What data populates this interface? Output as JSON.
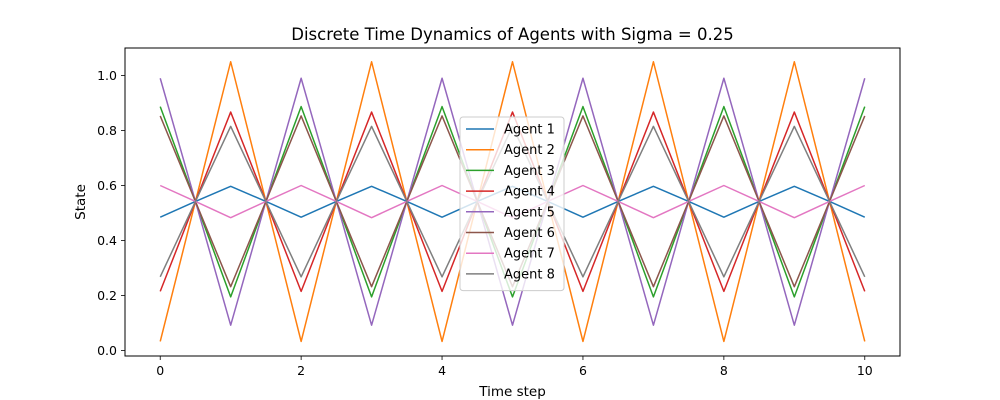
{
  "chart_data": {
    "type": "line",
    "title": "Discrete Time Dynamics of Agents with Sigma = 0.25",
    "xlabel": "Time step",
    "ylabel": "State",
    "xlim": [
      -0.5,
      10.5
    ],
    "ylim": [
      -0.02,
      1.1
    ],
    "xticks": [
      0,
      2,
      4,
      6,
      8,
      10
    ],
    "yticks": [
      0.0,
      0.2,
      0.4,
      0.6,
      0.8,
      1.0
    ],
    "xtick_labels": [
      "0",
      "2",
      "4",
      "6",
      "8",
      "10"
    ],
    "ytick_labels": [
      "0.0",
      "0.2",
      "0.4",
      "0.6",
      "0.8",
      "1.0"
    ],
    "grid": false,
    "legend_placement": "center",
    "x": [
      0,
      0.5,
      1,
      1.5,
      2,
      2.5,
      3,
      3.5,
      4,
      4.5,
      5,
      5.5,
      6,
      6.5,
      7,
      7.5,
      8,
      8.5,
      9,
      9.5,
      10
    ],
    "series": [
      {
        "name": "Agent 1",
        "color": "#1f77b4",
        "values": [
          0.485,
          0.542,
          0.597,
          0.542,
          0.485,
          0.542,
          0.597,
          0.542,
          0.485,
          0.542,
          0.597,
          0.542,
          0.485,
          0.542,
          0.597,
          0.542,
          0.485,
          0.542,
          0.597,
          0.542,
          0.485
        ]
      },
      {
        "name": "Agent 2",
        "color": "#ff7f0e",
        "values": [
          0.033,
          0.542,
          1.05,
          0.542,
          0.033,
          0.542,
          1.05,
          0.542,
          0.033,
          0.542,
          1.05,
          0.542,
          0.033,
          0.542,
          1.05,
          0.542,
          0.033,
          0.542,
          1.05,
          0.542,
          0.033
        ]
      },
      {
        "name": "Agent 3",
        "color": "#2ca02c",
        "values": [
          0.887,
          0.542,
          0.195,
          0.542,
          0.887,
          0.542,
          0.195,
          0.542,
          0.887,
          0.542,
          0.195,
          0.542,
          0.887,
          0.542,
          0.195,
          0.542,
          0.887,
          0.542,
          0.195,
          0.542,
          0.887
        ]
      },
      {
        "name": "Agent 4",
        "color": "#d62728",
        "values": [
          0.215,
          0.542,
          0.867,
          0.542,
          0.215,
          0.542,
          0.867,
          0.542,
          0.215,
          0.542,
          0.867,
          0.542,
          0.215,
          0.542,
          0.867,
          0.542,
          0.215,
          0.542,
          0.867,
          0.542,
          0.215
        ]
      },
      {
        "name": "Agent 5",
        "color": "#9467bd",
        "values": [
          0.99,
          0.542,
          0.092,
          0.542,
          0.99,
          0.542,
          0.092,
          0.542,
          0.99,
          0.542,
          0.092,
          0.542,
          0.99,
          0.542,
          0.092,
          0.542,
          0.99,
          0.542,
          0.092,
          0.542,
          0.99
        ]
      },
      {
        "name": "Agent 6",
        "color": "#8c564b",
        "values": [
          0.853,
          0.542,
          0.232,
          0.542,
          0.853,
          0.542,
          0.232,
          0.542,
          0.853,
          0.542,
          0.232,
          0.542,
          0.853,
          0.542,
          0.232,
          0.542,
          0.853,
          0.542,
          0.232,
          0.542,
          0.853
        ]
      },
      {
        "name": "Agent 7",
        "color": "#e377c2",
        "values": [
          0.6,
          0.542,
          0.483,
          0.542,
          0.6,
          0.542,
          0.483,
          0.542,
          0.6,
          0.542,
          0.483,
          0.542,
          0.6,
          0.542,
          0.483,
          0.542,
          0.6,
          0.542,
          0.483,
          0.542,
          0.6
        ]
      },
      {
        "name": "Agent 8",
        "color": "#7f7f7f",
        "values": [
          0.268,
          0.542,
          0.815,
          0.542,
          0.268,
          0.542,
          0.815,
          0.542,
          0.268,
          0.542,
          0.815,
          0.542,
          0.268,
          0.542,
          0.815,
          0.542,
          0.268,
          0.542,
          0.815,
          0.542,
          0.268
        ]
      }
    ]
  }
}
